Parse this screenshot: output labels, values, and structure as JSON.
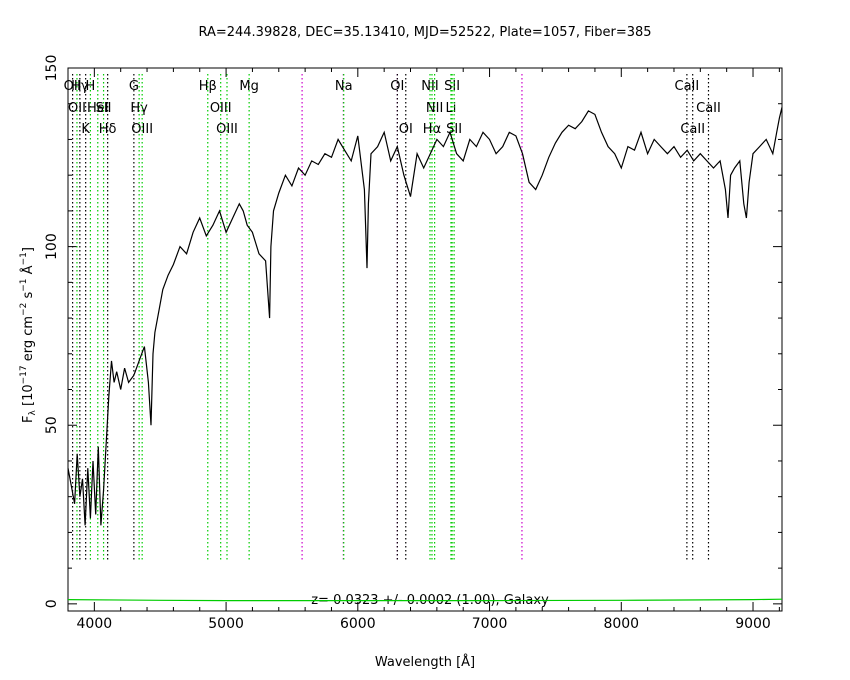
{
  "chart_data": {
    "type": "line",
    "title": "RA=244.39828, DEC=35.13410, MJD=52522, Plate=1057, Fiber=385",
    "xlabel": "Wavelength [Å]",
    "ylabel": "F_λ [10^-17 erg cm^-2 s^-1 Å^-1]",
    "xlim": [
      3800,
      9220
    ],
    "ylim": [
      -2,
      150
    ],
    "x_ticks": [
      4000,
      5000,
      6000,
      7000,
      8000,
      9000
    ],
    "y_ticks": [
      0,
      50,
      100,
      150
    ],
    "grid": false,
    "annotation": "z= 0.0323 +/- 0.0002 (1.00), Galaxy",
    "series": [
      {
        "color": "#000000",
        "x": [
          3800,
          3830,
          3850,
          3870,
          3890,
          3910,
          3930,
          3950,
          3970,
          3990,
          4010,
          4030,
          4050,
          4070,
          4090,
          4110,
          4130,
          4150,
          4170,
          4200,
          4230,
          4260,
          4300,
          4340,
          4380,
          4410,
          4430,
          4445,
          4460,
          4490,
          4520,
          4560,
          4600,
          4650,
          4700,
          4750,
          4800,
          4850,
          4900,
          4950,
          5000,
          5050,
          5100,
          5130,
          5160,
          5200,
          5250,
          5300,
          5330,
          5340,
          5360,
          5400,
          5450,
          5500,
          5550,
          5600,
          5650,
          5700,
          5750,
          5800,
          5850,
          5900,
          5950,
          6000,
          6050,
          6070,
          6080,
          6100,
          6150,
          6200,
          6250,
          6300,
          6350,
          6400,
          6450,
          6500,
          6550,
          6600,
          6650,
          6700,
          6750,
          6800,
          6850,
          6900,
          6950,
          7000,
          7050,
          7100,
          7150,
          7200,
          7250,
          7300,
          7350,
          7400,
          7450,
          7500,
          7550,
          7600,
          7650,
          7700,
          7750,
          7800,
          7850,
          7900,
          7950,
          8000,
          8050,
          8100,
          8150,
          8200,
          8250,
          8300,
          8350,
          8400,
          8450,
          8500,
          8550,
          8600,
          8650,
          8700,
          8750,
          8790,
          8810,
          8830,
          8860,
          8900,
          8930,
          8950,
          8970,
          9000,
          9050,
          9100,
          9150,
          9180,
          9200,
          9220
        ],
        "y": [
          38,
          32,
          28,
          42,
          30,
          35,
          22,
          38,
          24,
          40,
          25,
          44,
          22,
          32,
          45,
          58,
          68,
          62,
          65,
          60,
          66,
          62,
          64,
          68,
          72,
          62,
          50,
          70,
          76,
          82,
          88,
          92,
          95,
          100,
          98,
          104,
          108,
          103,
          106,
          110,
          104,
          108,
          112,
          110,
          106,
          104,
          98,
          96,
          80,
          100,
          110,
          115,
          120,
          117,
          122,
          120,
          124,
          123,
          126,
          125,
          130,
          127,
          124,
          131,
          116,
          94,
          112,
          126,
          128,
          132,
          124,
          128,
          120,
          114,
          126,
          122,
          126,
          130,
          128,
          132,
          126,
          124,
          130,
          128,
          132,
          130,
          126,
          128,
          132,
          131,
          126,
          118,
          116,
          120,
          125,
          129,
          132,
          134,
          133,
          135,
          138,
          137,
          132,
          128,
          126,
          122,
          128,
          127,
          132,
          126,
          130,
          128,
          126,
          128,
          125,
          127,
          124,
          126,
          124,
          122,
          124,
          116,
          108,
          120,
          122,
          124,
          112,
          108,
          118,
          126,
          128,
          130,
          126,
          132,
          136,
          139
        ]
      },
      {
        "color": "#00cc00",
        "x": [
          3800,
          4500,
          5000,
          6000,
          7000,
          8000,
          9000,
          9220
        ],
        "y": [
          1.2,
          1.0,
          0.9,
          0.9,
          0.9,
          1.0,
          1.2,
          1.3
        ]
      }
    ],
    "lines": [
      {
        "x": 3835,
        "color": "#000000",
        "labels": [
          {
            "text": "OII",
            "row": 1
          }
        ]
      },
      {
        "x": 3868,
        "color": "#00cc00",
        "labels": [
          {
            "text": "OII",
            "row": 2
          }
        ]
      },
      {
        "x": 3890,
        "color": "#000000",
        "labels": [
          {
            "text": "Hγ",
            "row": 1
          }
        ]
      },
      {
        "x": 3934,
        "color": "#000000",
        "labels": [
          {
            "text": "K",
            "row": 3
          }
        ]
      },
      {
        "x": 3970,
        "color": "#00cc00",
        "labels": [
          {
            "text": "H",
            "row": 1
          }
        ]
      },
      {
        "x": 4026,
        "color": "#00cc00",
        "labels": [
          {
            "text": "HeI",
            "row": 2
          }
        ]
      },
      {
        "x": 4070,
        "color": "#00cc00",
        "labels": [
          {
            "text": "SII",
            "row": 2
          }
        ]
      },
      {
        "x": 4101,
        "color": "#000000",
        "labels": [
          {
            "text": "Hδ",
            "row": 3
          }
        ]
      },
      {
        "x": 4300,
        "color": "#000000",
        "labels": [
          {
            "text": "G",
            "row": 1
          }
        ]
      },
      {
        "x": 4340,
        "color": "#00cc00",
        "labels": [
          {
            "text": "Hγ",
            "row": 2
          }
        ]
      },
      {
        "x": 4363,
        "color": "#00cc00",
        "labels": [
          {
            "text": "OIII",
            "row": 3
          }
        ]
      },
      {
        "x": 4861,
        "color": "#00cc00",
        "labels": [
          {
            "text": "Hβ",
            "row": 1
          }
        ]
      },
      {
        "x": 4959,
        "color": "#00cc00",
        "labels": [
          {
            "text": "OIII",
            "row": 2
          }
        ]
      },
      {
        "x": 5007,
        "color": "#00cc00",
        "labels": [
          {
            "text": "OIII",
            "row": 3
          }
        ]
      },
      {
        "x": 5175,
        "color": "#00cc00",
        "labels": [
          {
            "text": "Mg",
            "row": 1
          }
        ]
      },
      {
        "x": 5577,
        "color": "#cc00cc",
        "labels": []
      },
      {
        "x": 5890,
        "color": "#cc00cc",
        "labels": []
      },
      {
        "x": 5893,
        "color": "#00cc00",
        "labels": [
          {
            "text": "Na",
            "row": 1
          }
        ]
      },
      {
        "x": 6300,
        "color": "#cc00cc",
        "labels": []
      },
      {
        "x": 6300,
        "color": "#000000",
        "labels": [
          {
            "text": "OI",
            "row": 1
          }
        ]
      },
      {
        "x": 6364,
        "color": "#000000",
        "labels": [
          {
            "text": "OI",
            "row": 3
          }
        ]
      },
      {
        "x": 6548,
        "color": "#00cc00",
        "labels": [
          {
            "text": "NII",
            "row": 1
          }
        ]
      },
      {
        "x": 6563,
        "color": "#00cc00",
        "labels": [
          {
            "text": "Hα",
            "row": 3
          }
        ]
      },
      {
        "x": 6583,
        "color": "#00cc00",
        "labels": [
          {
            "text": "NII",
            "row": 2
          }
        ]
      },
      {
        "x": 6707,
        "color": "#00cc00",
        "labels": [
          {
            "text": "Li",
            "row": 2
          }
        ]
      },
      {
        "x": 6716,
        "color": "#00cc00",
        "labels": [
          {
            "text": "SII",
            "row": 1
          }
        ]
      },
      {
        "x": 6731,
        "color": "#00cc00",
        "labels": [
          {
            "text": "SII",
            "row": 3
          }
        ]
      },
      {
        "x": 7246,
        "color": "#cc00cc",
        "labels": []
      },
      {
        "x": 8498,
        "color": "#000000",
        "labels": [
          {
            "text": "CaII",
            "row": 1
          }
        ]
      },
      {
        "x": 8542,
        "color": "#000000",
        "labels": [
          {
            "text": "CaII",
            "row": 3
          }
        ]
      },
      {
        "x": 8662,
        "color": "#000000",
        "labels": [
          {
            "text": "CaII",
            "row": 2
          }
        ]
      }
    ]
  }
}
